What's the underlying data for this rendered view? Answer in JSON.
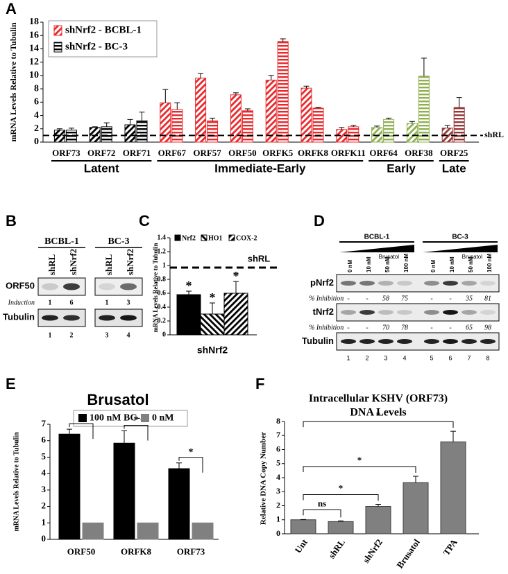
{
  "chart_data": [
    {
      "panel": "A",
      "type": "bar",
      "y_label": "mRNA Levels Relative to Tubulin",
      "groups": [
        {
          "name": "Latent",
          "label_color": "#4a7ebb",
          "bar_color": "#000000",
          "categories": [
            "ORF73",
            "ORF72",
            "ORF71"
          ]
        },
        {
          "name": "Immediate-Early",
          "label_color": "#e8282b",
          "bar_color": "#e8282b",
          "categories": [
            "ORF67",
            "ORF57",
            "ORF50",
            "ORFK5",
            "ORFK8",
            "ORFK11"
          ]
        },
        {
          "name": "Early",
          "label_color": "#9bbb59",
          "bar_color": "#8fb04f",
          "categories": [
            "ORF64",
            "ORF38"
          ]
        },
        {
          "name": "Late",
          "label_color": "#953735",
          "bar_color": "#953735",
          "categories": [
            "ORF25"
          ]
        }
      ],
      "series": [
        {
          "name": "shNrf2 - BCBL-1",
          "color": "#e8282b",
          "pattern": "diagonal",
          "values": [
            1.8,
            2.2,
            2.6,
            5.9,
            9.6,
            7.1,
            9.3,
            8.1,
            1.9,
            2.2,
            2.8,
            2.1
          ],
          "errors": [
            0.2,
            0.1,
            0.8,
            2.0,
            0.7,
            0.3,
            0.7,
            0.3,
            0.3,
            0.2,
            0.3,
            0.4
          ]
        },
        {
          "name": "shNrf2 - BC-3",
          "color": "#000000",
          "pattern": "horizontal",
          "values": [
            1.8,
            2.3,
            3.2,
            4.9,
            3.2,
            4.7,
            15.1,
            5.1,
            2.3,
            3.4,
            9.9,
            5.2
          ],
          "errors": [
            0.3,
            0.6,
            1.3,
            1.0,
            0.4,
            0.3,
            0.4,
            0.1,
            0.2,
            0.2,
            2.7,
            1.5
          ]
        }
      ],
      "reference": {
        "value": 1,
        "label": "shRL"
      },
      "ylim": [
        0,
        18
      ],
      "yticks": [
        0,
        2,
        4,
        6,
        8,
        10,
        12,
        14,
        16,
        18
      ]
    },
    {
      "panel": "C",
      "type": "bar",
      "y_label": "mRNA Levels Relative to Tubulin",
      "categories": [
        "shNrf2"
      ],
      "series": [
        {
          "name": "Nrf2",
          "color": "#000000",
          "pattern": "solid",
          "values": [
            0.58
          ],
          "errors": [
            0.05
          ],
          "significance": [
            "*"
          ]
        },
        {
          "name": "HO1",
          "color": "#000000",
          "pattern": "backward-diagonal",
          "values": [
            0.3
          ],
          "errors": [
            0.16
          ],
          "significance": [
            "*"
          ]
        },
        {
          "name": "COX-2",
          "color": "#000000",
          "pattern": "diagonal",
          "values": [
            0.6
          ],
          "errors": [
            0.17
          ],
          "significance": [
            "*"
          ]
        }
      ],
      "reference": {
        "value": 0.97,
        "label": "shRL"
      },
      "ylim": [
        0,
        1.4
      ],
      "yticks": [
        0,
        0.2,
        0.4,
        0.6,
        0.8,
        1,
        1.2,
        1.4
      ]
    },
    {
      "panel": "E",
      "type": "bar",
      "title": "Brusatol",
      "y_label": "mRNA Levels Relative to Tubulin",
      "categories": [
        "ORF50",
        "ORFK8",
        "ORF73"
      ],
      "series": [
        {
          "name": "100 nM BC-3",
          "color": "#000000",
          "values": [
            6.4,
            5.85,
            4.3
          ],
          "errors": [
            0.3,
            0.75,
            0.35
          ]
        },
        {
          "name": "0 nM",
          "color": "#808080",
          "values": [
            1,
            1,
            1
          ]
        }
      ],
      "significance": [
        "*",
        "*",
        "*"
      ],
      "ylim": [
        0,
        7
      ],
      "yticks": [
        0,
        1,
        2,
        3,
        4,
        5,
        6,
        7
      ]
    },
    {
      "panel": "F",
      "type": "bar",
      "title": [
        "Intracellular KSHV (ORF73)",
        "DNA Levels"
      ],
      "y_label": "Relative DNA Copy Number",
      "categories": [
        "Unt",
        "shRL",
        "shNrf2",
        "Brusatol",
        "TPA"
      ],
      "color": "#808080",
      "values": [
        1.0,
        0.87,
        1.95,
        3.65,
        6.55
      ],
      "errors": [
        0.02,
        0.05,
        0.15,
        0.45,
        0.75
      ],
      "comparisons": [
        null,
        "ns",
        "*",
        "*",
        "*"
      ],
      "ylim": [
        0,
        8
      ],
      "yticks": [
        0,
        1,
        2,
        3,
        4,
        5,
        6,
        7,
        8
      ]
    }
  ],
  "blots": [
    {
      "panel": "B",
      "rows": [
        "ORF50",
        "Tubulin"
      ],
      "induction_label": "Induction",
      "groups": [
        {
          "name": "BCBL-1",
          "lanes": [
            "shRL",
            "shNrf2"
          ],
          "induction": [
            1,
            6
          ],
          "lane_numbers": [
            1,
            2
          ]
        },
        {
          "name": "BC-3",
          "lanes": [
            "shRL",
            "shNrf2"
          ],
          "induction": [
            1,
            3
          ],
          "lane_numbers": [
            3,
            4
          ]
        }
      ]
    },
    {
      "panel": "D",
      "inhibition_label": "% Inhibition",
      "groups": [
        {
          "name": "BCBL-1",
          "treatment": "Brusatol",
          "lanes": [
            "0 nM",
            "10 nM",
            "50 nM",
            "100 nM"
          ],
          "lane_numbers": [
            1,
            2,
            3,
            4
          ]
        },
        {
          "name": "BC-3",
          "treatment": "Brusatol",
          "lanes": [
            "0 nM",
            "10 nM",
            "50 nM",
            "100 nM"
          ],
          "lane_numbers": [
            5,
            6,
            7,
            8
          ]
        }
      ],
      "rows": [
        {
          "name": "pNrf2",
          "inhibition": [
            "-",
            "-",
            58,
            75,
            "-",
            "-",
            35,
            81
          ]
        },
        {
          "name": "tNrf2",
          "inhibition": [
            "-",
            "-",
            70,
            78,
            "-",
            "-",
            65,
            98
          ]
        },
        {
          "name": "Tubulin"
        }
      ]
    }
  ]
}
